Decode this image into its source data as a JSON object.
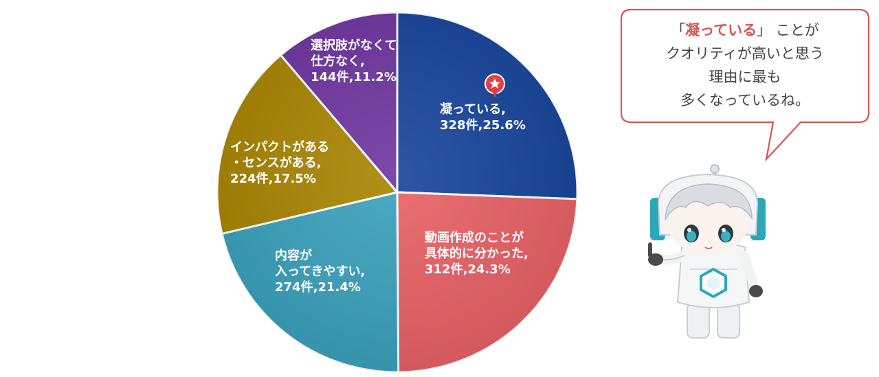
{
  "chart_data": {
    "type": "pie",
    "start_angle_deg": 0,
    "direction": "clockwise",
    "slices": [
      {
        "label_lines": [
          "凝っている,",
          "328件,25.6%"
        ],
        "count": 328,
        "percent": 25.6,
        "color": "#15449b"
      },
      {
        "label_lines": [
          "動画作成のことが",
          "具体的に分かった,",
          "312件,24.3%"
        ],
        "count": 312,
        "percent": 24.3,
        "color": "#e96065"
      },
      {
        "label_lines": [
          "内容が",
          "入ってきやすい,",
          "274件,21.4%"
        ],
        "count": 274,
        "percent": 21.4,
        "color": "#3aa1bd"
      },
      {
        "label_lines": [
          "インパクトがある",
          "・センスがある,",
          "224件,17.5%"
        ],
        "count": 224,
        "percent": 17.5,
        "color": "#a98500"
      },
      {
        "label_lines": [
          "選択肢がなくて",
          "仕方なく,",
          "144件,11.2%"
        ],
        "count": 144,
        "percent": 11.2,
        "color": "#6e35a0"
      }
    ]
  },
  "speech_bubble": {
    "line1_open": "「",
    "line1_emphasis": "凝っている",
    "line1_close": "」 ことが",
    "line2": "クオリティが高いと思う",
    "line3": "理由に最も",
    "line4": "多くなっているね。",
    "border_color": "#d9534f"
  },
  "highlight_marker": {
    "icon": "star-pin-icon",
    "color": "#e43d44"
  }
}
